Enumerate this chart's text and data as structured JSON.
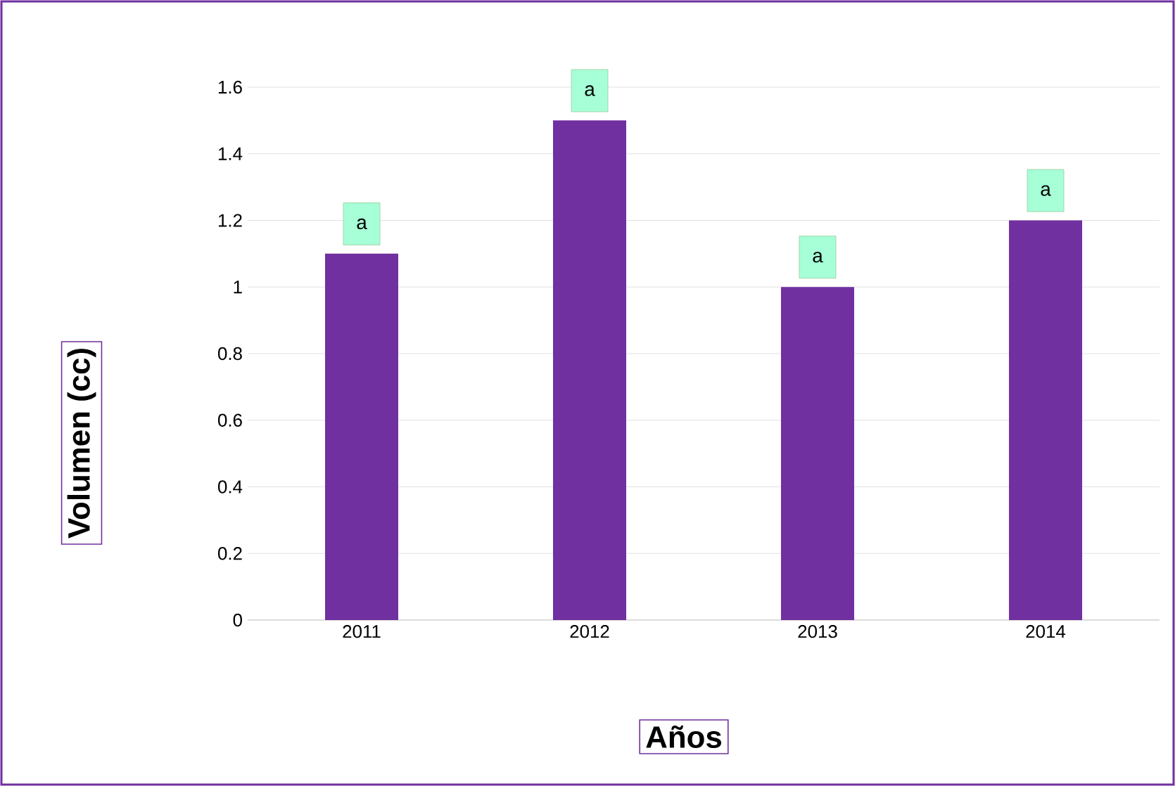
{
  "chart_data": {
    "type": "bar",
    "xlabel": "Años",
    "ylabel": "Volumen (cc)",
    "categories": [
      "2011",
      "2012",
      "2013",
      "2014"
    ],
    "values": [
      1.1,
      1.5,
      1.0,
      1.2
    ],
    "color": "#7030a0",
    "ylim": [
      0,
      1.6
    ],
    "yticks": [
      0,
      0.2,
      0.4,
      0.6,
      0.8,
      1,
      1.2,
      1.4,
      1.6
    ],
    "grid": "y",
    "annotations": [
      {
        "text": "a",
        "x": "2011",
        "y": 1.1
      },
      {
        "text": "a",
        "x": "2012",
        "y": 1.5
      },
      {
        "text": "a",
        "x": "2013",
        "y": 1.0
      },
      {
        "text": "a",
        "x": "2014",
        "y": 1.2
      }
    ]
  }
}
